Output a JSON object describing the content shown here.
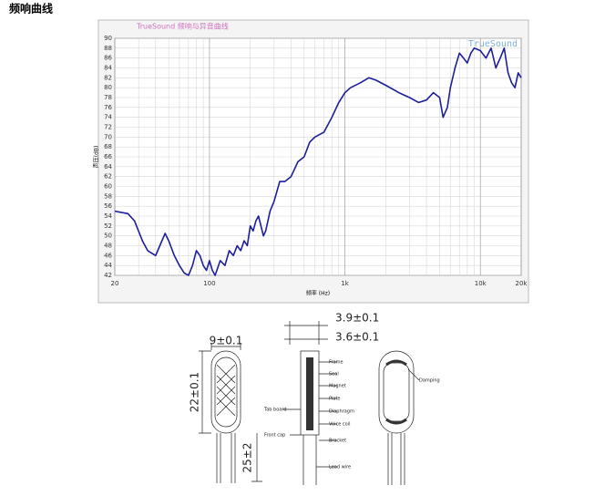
{
  "heading": "频响曲线",
  "chart_data": {
    "type": "line",
    "title": "TrueSound 频响与异音曲线",
    "watermark": "TrueSound",
    "x_label": "频率 (Hz)",
    "y_label": "声压(dB)",
    "log_x": true,
    "grid": true,
    "xlim": [
      20,
      20000
    ],
    "ylim": [
      42,
      90
    ],
    "xticks": [
      20,
      100,
      {
        "value": 1000,
        "label": "1k"
      },
      {
        "value": 10000,
        "label": "10k"
      },
      {
        "value": 20000,
        "label": "20k"
      }
    ],
    "xminor_ticks": [
      30,
      40,
      50,
      60,
      70,
      80,
      90,
      200,
      300,
      400,
      500,
      600,
      700,
      800,
      900,
      2000,
      3000,
      4000,
      5000,
      6000,
      7000,
      8000,
      9000
    ],
    "yticks": [
      42,
      44,
      46,
      48,
      50,
      52,
      54,
      56,
      58,
      60,
      62,
      64,
      66,
      68,
      70,
      72,
      74,
      76,
      78,
      80,
      82,
      84,
      86,
      88,
      90
    ],
    "x": [
      20,
      25,
      28,
      32,
      35,
      40,
      43,
      47,
      50,
      55,
      60,
      65,
      70,
      75,
      80,
      85,
      90,
      95,
      100,
      105,
      110,
      120,
      130,
      140,
      150,
      160,
      170,
      180,
      190,
      200,
      210,
      220,
      230,
      240,
      250,
      260,
      280,
      300,
      330,
      360,
      400,
      450,
      500,
      550,
      600,
      700,
      800,
      900,
      1000,
      1100,
      1300,
      1500,
      1700,
      2000,
      2500,
      3000,
      3500,
      4000,
      4500,
      5000,
      5300,
      5700,
      6000,
      6500,
      7000,
      7500,
      8000,
      8500,
      9000,
      10000,
      11000,
      12000,
      13000,
      14000,
      15000,
      16000,
      17000,
      18000,
      19000,
      20000
    ],
    "series": [
      {
        "name": "SPL",
        "color": "#1e1e9c",
        "values": [
          55,
          54.5,
          53,
          49,
          47,
          46,
          48,
          50.5,
          49,
          46,
          44,
          42.5,
          42,
          44,
          47,
          46,
          44,
          43,
          45,
          43,
          42,
          45,
          44,
          47,
          46,
          48,
          47,
          49,
          48,
          52,
          51,
          53,
          54,
          52,
          50,
          51,
          55,
          57,
          61,
          61,
          62,
          65,
          66,
          69,
          70,
          71,
          74,
          77,
          79,
          80,
          81,
          82,
          81.5,
          80.5,
          79,
          78,
          77,
          77.5,
          79,
          78,
          74,
          76,
          80,
          84,
          87,
          86,
          85,
          87,
          88,
          87.5,
          86,
          88,
          84,
          86,
          88,
          83,
          81,
          80,
          83,
          82
        ]
      }
    ]
  },
  "diagram": {
    "labels": [
      "9±0.1",
      "22±0.1",
      "25±2",
      "3.9±0.1",
      "3.6±0.1",
      "Frame",
      "Seal",
      "Magnet",
      "Plate",
      "Diaphragm",
      "Voice coil",
      "Bracket",
      "Lead wire",
      "Tab board",
      "Front cap",
      "Damping"
    ]
  }
}
